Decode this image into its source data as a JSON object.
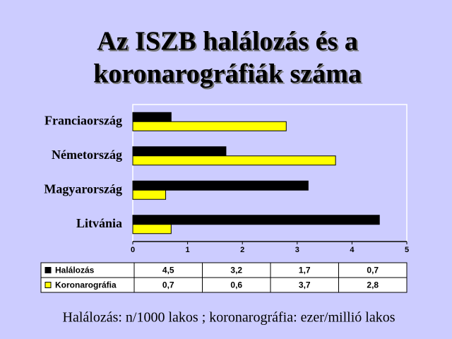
{
  "chart_data": {
    "type": "bar",
    "orientation": "horizontal",
    "title": [
      "Az ISZB halálozás és a",
      "koronarográfiák száma"
    ],
    "categories": [
      "Litvánia",
      "Magyarország",
      "Németország",
      "Franciaország"
    ],
    "series": [
      {
        "name": "Halálozás",
        "color": "#000000",
        "values": [
          4.5,
          3.2,
          1.7,
          0.7
        ],
        "value_labels": [
          "4,5",
          "3,2",
          "1,7",
          "0,7"
        ]
      },
      {
        "name": "Koronarográfia",
        "color": "#ffff00",
        "values": [
          0.7,
          0.6,
          3.7,
          2.8
        ],
        "value_labels": [
          "0,7",
          "0,6",
          "3,7",
          "2,8"
        ]
      }
    ],
    "xlim": [
      0,
      5
    ],
    "xticks": [
      0,
      1,
      2,
      3,
      4,
      5
    ],
    "grid": false,
    "note": "Halálozás: n/1000 lakos ; koronarográfia: ezer/millió lakos"
  }
}
